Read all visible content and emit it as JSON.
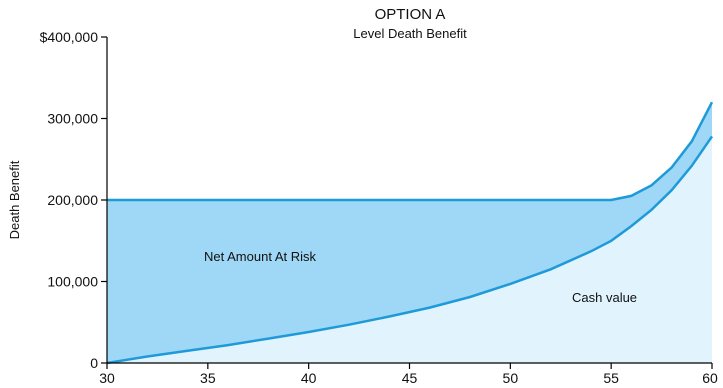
{
  "chart_data": {
    "type": "area",
    "title": "OPTION A",
    "subtitle": "Level Death Benefit",
    "xlabel": "",
    "ylabel": "Death Benefit",
    "xlim": [
      30,
      60
    ],
    "ylim": [
      0,
      400000
    ],
    "x_ticks": [
      30,
      35,
      40,
      45,
      50,
      55,
      60
    ],
    "y_ticks": [
      0,
      100000,
      200000,
      300000,
      400000
    ],
    "y_tick_labels": [
      "0",
      "100,000",
      "200,000",
      "300,000",
      "$400,000"
    ],
    "grid": false,
    "series": [
      {
        "x": [
          30,
          32,
          34,
          36,
          38,
          40,
          42,
          44,
          46,
          48,
          50,
          52,
          54,
          55,
          56,
          57,
          58,
          59,
          60
        ],
        "values": [
          200000,
          200000,
          200000,
          200000,
          200000,
          200000,
          200000,
          200000,
          200000,
          200000,
          200000,
          200000,
          200000,
          200000,
          205000,
          218000,
          240000,
          272000,
          320000
        ]
      },
      {
        "x": [
          30,
          32,
          34,
          36,
          38,
          40,
          42,
          44,
          46,
          48,
          50,
          52,
          54,
          55,
          56,
          57,
          58,
          59,
          60
        ],
        "values": [
          0,
          8000,
          15000,
          22000,
          30000,
          38000,
          47000,
          57000,
          68000,
          81000,
          97000,
          115000,
          137000,
          150000,
          168000,
          188000,
          212000,
          242000,
          278000
        ]
      }
    ],
    "annotations": [
      {
        "text": "Net Amount At Risk",
        "x": 42,
        "y": 130000
      },
      {
        "text": "Cash value",
        "x": 55,
        "y": 85000
      }
    ],
    "colors": {
      "net_amount_fill": "#9fd8f6",
      "cash_value_fill": "#e1f4fd",
      "line": "#1f9ad8",
      "axis": "#000000"
    }
  }
}
